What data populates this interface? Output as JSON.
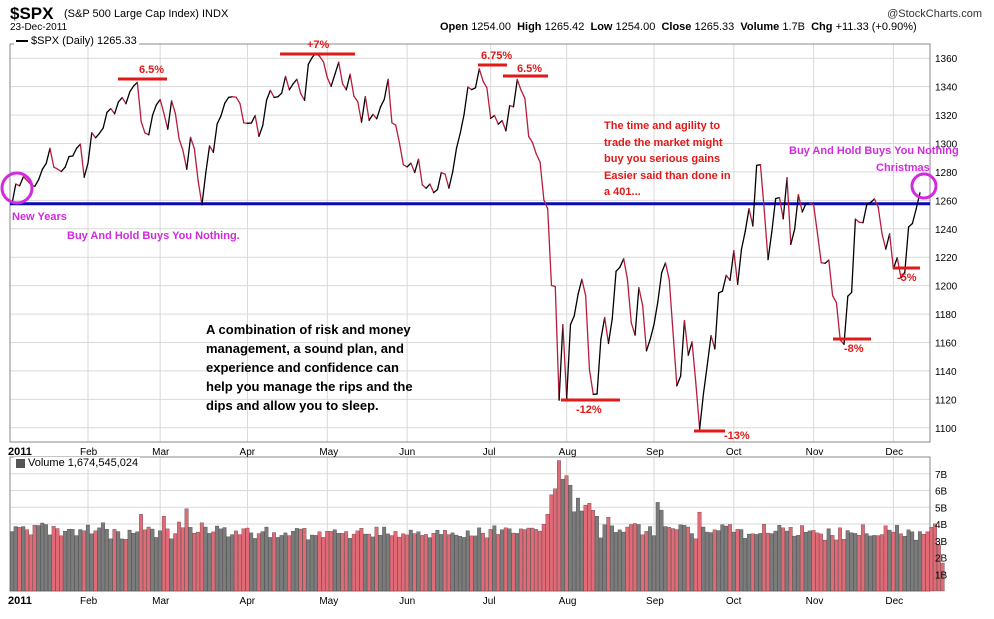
{
  "header": {
    "symbol": "$SPX",
    "name": "(S&P 500 Large Cap Index) INDX",
    "date": "23-Dec-2011",
    "brand": "@StockCharts.com",
    "open_label": "Open",
    "open": "1254.00",
    "high_label": "High",
    "high": "1265.42",
    "low_label": "Low",
    "low": "1254.00",
    "close_label": "Close",
    "close": "1265.33",
    "volume_label": "Volume",
    "volume": "1.7B",
    "chg_label": "Chg",
    "chg": "+11.33 (+0.90%)",
    "legend": "$SPX (Daily) 1265.33",
    "volume_legend": "Volume 1,674,545,024"
  },
  "annotations": {
    "new_years": "New Years",
    "buy_hold_left": "Buy And Hold Buys You Nothing.",
    "buy_hold_right": "Buy And Hold Buys You Nothing",
    "christmas": "Christmas",
    "time_agility": [
      "The time and agility to",
      "trade the market might",
      "buy you serious gains",
      "Easier said than done in",
      "a 401..."
    ],
    "risk_money": [
      "A combination of risk and money",
      "management, a sound plan, and",
      "experience and confidence can",
      "help you manage the rips and the",
      "dips and allow you to sleep."
    ],
    "pct_labels": [
      "6.5%",
      "+7%",
      "6.75%",
      "6.5%",
      "-12%",
      "-13%",
      "-8%",
      "-5%"
    ]
  },
  "colors": {
    "up": "#000000",
    "down": "#b71c3d",
    "baseline": "#0a0ab8",
    "annotation_red": "#e11919",
    "annotation_magenta": "#d22adf",
    "vol_up": "#7b7b7b",
    "vol_down": "#e06b76",
    "grid": "#d9d9d9"
  },
  "chart_data": [
    {
      "type": "line",
      "title": "$SPX (Daily) 1265.33",
      "ylim": [
        1090,
        1370
      ],
      "yticks": [
        1100,
        1120,
        1140,
        1160,
        1180,
        1200,
        1220,
        1240,
        1260,
        1280,
        1300,
        1320,
        1340,
        1360
      ],
      "x_tick_labels": [
        "2011",
        "Feb",
        "Mar",
        "Apr",
        "May",
        "Jun",
        "Jul",
        "Aug",
        "Sep",
        "Oct",
        "Nov",
        "Dec"
      ],
      "baseline": 1257.6,
      "series": [
        {
          "values": [
            1257.6,
            1271.5,
            1270.2,
            1276.6,
            1273.9,
            1271.0,
            1269.8,
            1274.5,
            1281.9,
            1285.9,
            1296.6,
            1283.4,
            1281.9,
            1280.3,
            1283.4,
            1290.8,
            1291.2,
            1296.6,
            1299.5,
            1276.3,
            1286.1,
            1307.6,
            1304.0,
            1307.1,
            1310.9,
            1321.9,
            1324.6,
            1320.9,
            1329.2,
            1332.3,
            1328.0,
            1336.3,
            1340.4,
            1343.0,
            1315.4,
            1307.4,
            1306.1,
            1319.9,
            1327.2,
            1330.9,
            1321.1,
            1310.1,
            1330.0,
            1321.2,
            1303.0,
            1295.1,
            1281.9,
            1304.3,
            1296.4,
            1273.7,
            1256.9,
            1279.2,
            1298.4,
            1293.8,
            1313.8,
            1319.4,
            1328.3,
            1332.4,
            1332.9,
            1332.6,
            1328.2,
            1314.5,
            1314.2,
            1314.4,
            1319.7,
            1305.1,
            1312.6,
            1330.4,
            1337.4,
            1332.4,
            1332.9,
            1335.5,
            1347.2,
            1337.8,
            1342.0,
            1345.2,
            1335.1,
            1330.4,
            1355.7,
            1360.5,
            1363.6,
            1361.2,
            1357.3,
            1346.3,
            1340.2,
            1348.7,
            1357.2,
            1342.1,
            1337.8,
            1348.7,
            1333.3,
            1329.5,
            1315.0,
            1333.0,
            1316.3,
            1320.5,
            1317.4,
            1325.7,
            1331.1,
            1345.2,
            1314.6,
            1312.9,
            1300.2,
            1285.1,
            1283.5,
            1286.2,
            1279.6,
            1289.0,
            1270.9,
            1268.5,
            1271.5,
            1265.4,
            1267.6,
            1279.6,
            1278.4,
            1268.6,
            1280.1,
            1296.7,
            1307.4,
            1320.6,
            1339.7,
            1337.9,
            1339.2,
            1352.5,
            1343.8,
            1339.2,
            1317.7,
            1319.7,
            1313.6,
            1316.1,
            1308.9,
            1326.7,
            1325.8,
            1345.0,
            1337.4,
            1331.9,
            1304.9,
            1300.7,
            1292.6,
            1286.9,
            1260.3,
            1254.1,
            1200.1,
            1199.4,
            1119.5,
            1172.6,
            1120.8,
            1172.6,
            1178.8,
            1193.9,
            1204.5,
            1192.8,
            1140.7,
            1123.5,
            1123.8,
            1162.3,
            1177.6,
            1159.3,
            1176.8,
            1210.1,
            1212.9,
            1218.9,
            1204.4,
            1173.9,
            1165.2,
            1198.6,
            1185.9,
            1154.2,
            1162.3,
            1172.9,
            1188.7,
            1209.1,
            1216.0,
            1204.1,
            1166.8,
            1129.6,
            1136.4,
            1175.4,
            1151.1,
            1160.4,
            1131.4,
            1099.2,
            1123.9,
            1144.0,
            1164.9,
            1155.5,
            1194.9,
            1196.1,
            1207.3,
            1203.7,
            1224.6,
            1200.9,
            1225.4,
            1238.2,
            1254.2,
            1242.0,
            1284.6,
            1285.1,
            1253.3,
            1218.3,
            1237.9,
            1261.2,
            1262.0,
            1247.0,
            1275.9,
            1229.1,
            1239.7,
            1263.9,
            1251.8,
            1257.8,
            1257.9,
            1256.9,
            1236.9,
            1216.1,
            1215.7,
            1218.0,
            1192.9,
            1188.0,
            1161.8,
            1158.7,
            1192.6,
            1195.2,
            1246.9,
            1244.6,
            1244.3,
            1257.1,
            1258.5,
            1261.0,
            1255.2,
            1236.5,
            1225.7,
            1236.5,
            1211.8,
            1219.7,
            1205.4,
            1209.5,
            1241.3,
            1243.7,
            1254.0,
            1265.3
          ]
        }
      ]
    },
    {
      "type": "bar",
      "title": "Volume 1,674,545,024",
      "ylim": [
        0,
        8
      ],
      "yticks": [
        1,
        2,
        3,
        4,
        5,
        6,
        7
      ],
      "ytick_labels": [
        "1B",
        "2B",
        "3B",
        "4B",
        "5B",
        "6B",
        "7B"
      ],
      "x_tick_labels": [
        "2011",
        "Feb",
        "Mar",
        "Apr",
        "May",
        "Jun",
        "Jul",
        "Aug",
        "Sep",
        "Oct",
        "Nov",
        "Dec"
      ],
      "series": [
        {
          "name": "Volume",
          "values": [
            3.55,
            3.85,
            3.8,
            3.85,
            3.66,
            3.36,
            3.93,
            3.91,
            4.06,
            3.97,
            3.35,
            3.86,
            3.73,
            3.3,
            3.57,
            3.69,
            3.69,
            3.31,
            3.67,
            3.6,
            3.94,
            3.42,
            3.6,
            3.77,
            4.08,
            3.69,
            3.12,
            3.68,
            3.55,
            3.11,
            3.09,
            3.64,
            3.45,
            3.54,
            4.58,
            3.65,
            3.82,
            3.7,
            3.2,
            3.6,
            4.47,
            3.71,
            3.12,
            3.43,
            4.12,
            3.78,
            4.91,
            3.8,
            3.45,
            3.52,
            4.07,
            3.82,
            3.44,
            3.53,
            3.88,
            3.71,
            3.79,
            3.24,
            3.37,
            3.59,
            3.37,
            3.72,
            3.76,
            3.47,
            3.14,
            3.43,
            3.55,
            3.82,
            3.2,
            3.49,
            3.2,
            3.32,
            3.47,
            3.31,
            3.57,
            3.74,
            3.7,
            3.75,
            3.07,
            3.34,
            3.32,
            3.54,
            3.2,
            3.57,
            3.56,
            3.66,
            3.45,
            3.44,
            3.55,
            3.15,
            3.4,
            3.59,
            3.75,
            3.4,
            3.4,
            3.23,
            3.82,
            3.33,
            3.82,
            3.41,
            3.31,
            3.56,
            3.22,
            3.42,
            3.35,
            3.64,
            3.43,
            3.54,
            3.32,
            3.38,
            3.19,
            3.45,
            3.63,
            3.38,
            3.63,
            3.37,
            3.47,
            3.34,
            3.27,
            3.2,
            3.6,
            3.29,
            3.29,
            3.77,
            3.45,
            3.18,
            3.68,
            3.9,
            3.38,
            3.66,
            3.77,
            3.72,
            3.46,
            3.44,
            3.71,
            3.67,
            3.76,
            3.76,
            3.68,
            3.58,
            3.98,
            4.59,
            5.75,
            6.1,
            7.79,
            6.68,
            6.89,
            6.32,
            4.73,
            5.55,
            4.78,
            5.13,
            5.24,
            4.82,
            4.46,
            3.17,
            3.95,
            4.4,
            3.89,
            3.5,
            3.65,
            3.52,
            3.82,
            3.97,
            4.03,
            3.97,
            3.36,
            3.56,
            3.85,
            3.31,
            5.29,
            4.83,
            3.85,
            3.8,
            3.73,
            3.67,
            3.95,
            3.92,
            3.82,
            3.43,
            3.12,
            4.71,
            3.82,
            3.52,
            3.49,
            3.65,
            3.61,
            3.96,
            3.88,
            3.97,
            3.52,
            3.68,
            3.67,
            3.15,
            3.4,
            3.42,
            3.38,
            3.44,
            3.98,
            3.46,
            3.43,
            3.58,
            3.93,
            3.77,
            3.58,
            3.8,
            3.28,
            3.33,
            3.91,
            3.51,
            3.59,
            3.62,
            3.47,
            3.41,
            3.04,
            3.72,
            3.32,
            3.05,
            3.77,
            3.09,
            3.61,
            3.48,
            3.44,
            3.33,
            3.96,
            3.43,
            3.29,
            3.32,
            3.31,
            3.37,
            3.89,
            3.64,
            3.52,
            3.93,
            3.42,
            3.27,
            3.65,
            3.54,
            3.04,
            3.55,
            3.39,
            3.54,
            3.8,
            4.01,
            2.78,
            1.67
          ]
        }
      ]
    }
  ]
}
